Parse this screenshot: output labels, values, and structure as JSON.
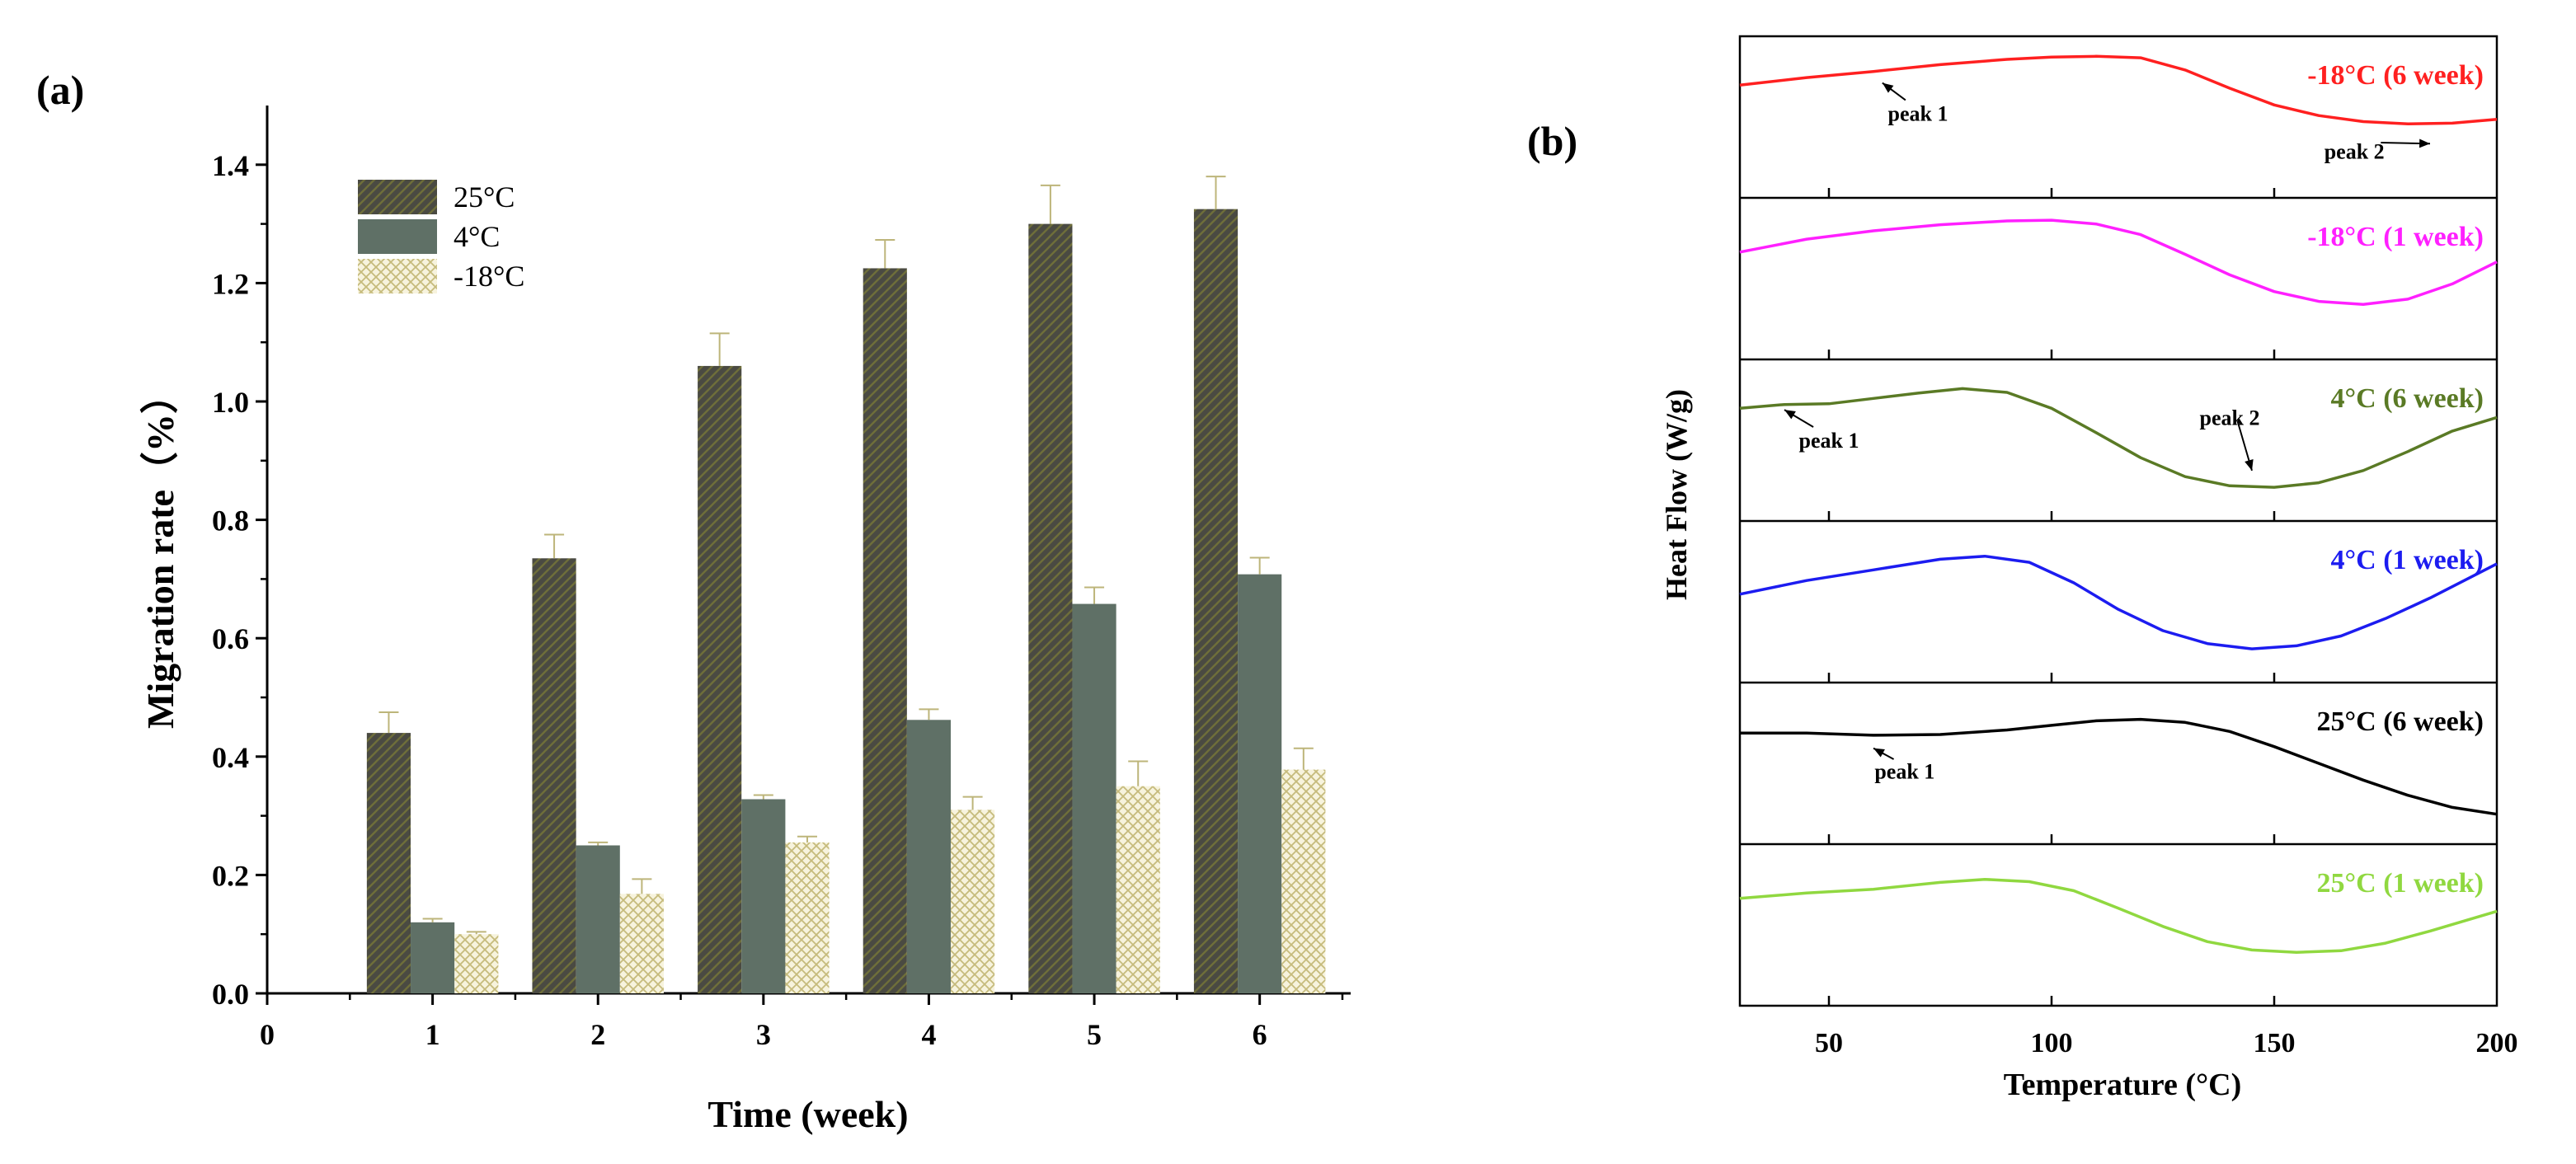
{
  "chart_data": [
    {
      "type": "bar",
      "panel_label": "(a)",
      "xlabel": "Time (week)",
      "ylabel": "Migration rate（%）",
      "x_ticks": [
        "0",
        "1",
        "2",
        "3",
        "4",
        "5",
        "6"
      ],
      "y_ticks": [
        "0.0",
        "0.2",
        "0.4",
        "0.6",
        "0.8",
        "1.0",
        "1.2",
        "1.4"
      ],
      "xlim": [
        0,
        6.55
      ],
      "ylim": [
        0,
        1.5
      ],
      "categories": [
        "1",
        "2",
        "3",
        "4",
        "5",
        "6"
      ],
      "legend_position": "top-left",
      "series": [
        {
          "name": "25°C",
          "values": [
            0.44,
            0.735,
            1.06,
            1.225,
            1.3,
            1.325
          ],
          "errors": [
            0.035,
            0.04,
            0.055,
            0.048,
            0.065,
            0.055
          ],
          "color": "#4a4a42",
          "pattern": "hatch-dark"
        },
        {
          "name": "4°C",
          "values": [
            0.12,
            0.25,
            0.328,
            0.462,
            0.658,
            0.708
          ],
          "errors": [
            0.006,
            0.005,
            0.007,
            0.018,
            0.028,
            0.028
          ],
          "color": "#5f7066",
          "pattern": "solid"
        },
        {
          "name": "-18°C",
          "values": [
            0.1,
            0.168,
            0.255,
            0.31,
            0.35,
            0.378
          ],
          "errors": [
            0.004,
            0.025,
            0.01,
            0.022,
            0.042,
            0.036
          ],
          "color": "#c8c08a",
          "pattern": "crosshatch"
        }
      ]
    },
    {
      "type": "line",
      "panel_label": "(b)",
      "xlabel": "Temperature (°C)",
      "ylabel": "Heat Flow (W/g)",
      "x_ticks": [
        "50",
        "100",
        "150",
        "200"
      ],
      "xlim": [
        30,
        200
      ],
      "series": [
        {
          "name": "-18°C (6 week)",
          "color": "#ff2020",
          "x": [
            30,
            45,
            60,
            75,
            90,
            100,
            110,
            120,
            130,
            140,
            150,
            160,
            170,
            180,
            190,
            200
          ],
          "y": [
            0.42,
            0.52,
            0.6,
            0.69,
            0.76,
            0.79,
            0.8,
            0.78,
            0.62,
            0.38,
            0.16,
            0.02,
            -0.06,
            -0.09,
            -0.08,
            -0.03
          ],
          "annotations": [
            {
              "text": "peak 1",
              "x": 70,
              "y": -0.05,
              "arrow_to": [
                62,
                0.45
              ]
            },
            {
              "text": "peak 2",
              "x": 168,
              "y": -0.55,
              "arrow_to": [
                185,
                -0.35
              ]
            }
          ]
        },
        {
          "name": "-18°C (1 week)",
          "color": "#ff20ff",
          "x": [
            30,
            45,
            60,
            75,
            90,
            100,
            110,
            120,
            130,
            140,
            150,
            160,
            170,
            180,
            190,
            200
          ],
          "y": [
            0.35,
            0.52,
            0.63,
            0.71,
            0.76,
            0.77,
            0.72,
            0.58,
            0.32,
            0.05,
            -0.17,
            -0.3,
            -0.34,
            -0.27,
            -0.07,
            0.22
          ],
          "annotations": []
        },
        {
          "name": "4°C (6 week)",
          "color": "#5a7a25",
          "x": [
            30,
            40,
            50,
            60,
            70,
            80,
            90,
            100,
            110,
            120,
            130,
            140,
            150,
            160,
            170,
            180,
            190,
            200
          ],
          "y": [
            0.42,
            0.47,
            0.48,
            0.55,
            0.62,
            0.68,
            0.63,
            0.42,
            0.1,
            -0.23,
            -0.48,
            -0.6,
            -0.62,
            -0.56,
            -0.4,
            -0.15,
            0.12,
            0.3
          ],
          "annotations": [
            {
              "text": "peak 1",
              "x": 50,
              "y": -0.1,
              "arrow_to": [
                40,
                0.4
              ]
            },
            {
              "text": "peak 2",
              "x": 140,
              "y": 0.2,
              "arrow_to": [
                145,
                -0.4
              ]
            }
          ]
        },
        {
          "name": "4°C (1 week)",
          "color": "#1c1cf0",
          "x": [
            30,
            45,
            60,
            75,
            85,
            95,
            105,
            115,
            125,
            135,
            145,
            155,
            165,
            175,
            185,
            200
          ],
          "y": [
            0.1,
            0.28,
            0.42,
            0.56,
            0.6,
            0.52,
            0.25,
            -0.1,
            -0.38,
            -0.55,
            -0.62,
            -0.58,
            -0.45,
            -0.22,
            0.05,
            0.5
          ],
          "annotations": []
        },
        {
          "name": "25°C (6 week)",
          "color": "#000000",
          "x": [
            30,
            45,
            60,
            75,
            90,
            100,
            110,
            120,
            130,
            140,
            150,
            160,
            170,
            180,
            190,
            200
          ],
          "y": [
            0.4,
            0.4,
            0.37,
            0.38,
            0.44,
            0.5,
            0.56,
            0.58,
            0.54,
            0.42,
            0.22,
            0.0,
            -0.22,
            -0.42,
            -0.58,
            -0.67
          ],
          "annotations": [
            {
              "text": "peak 1",
              "x": 67,
              "y": -0.2,
              "arrow_to": [
                60,
                0.2
              ]
            }
          ]
        },
        {
          "name": "25°C (1 week)",
          "color": "#90d840",
          "x": [
            30,
            45,
            60,
            75,
            85,
            95,
            105,
            115,
            125,
            135,
            145,
            155,
            165,
            175,
            185,
            200
          ],
          "y": [
            0.35,
            0.42,
            0.47,
            0.56,
            0.6,
            0.57,
            0.45,
            0.22,
            -0.02,
            -0.22,
            -0.33,
            -0.36,
            -0.34,
            -0.24,
            -0.08,
            0.18
          ],
          "annotations": []
        }
      ]
    }
  ]
}
